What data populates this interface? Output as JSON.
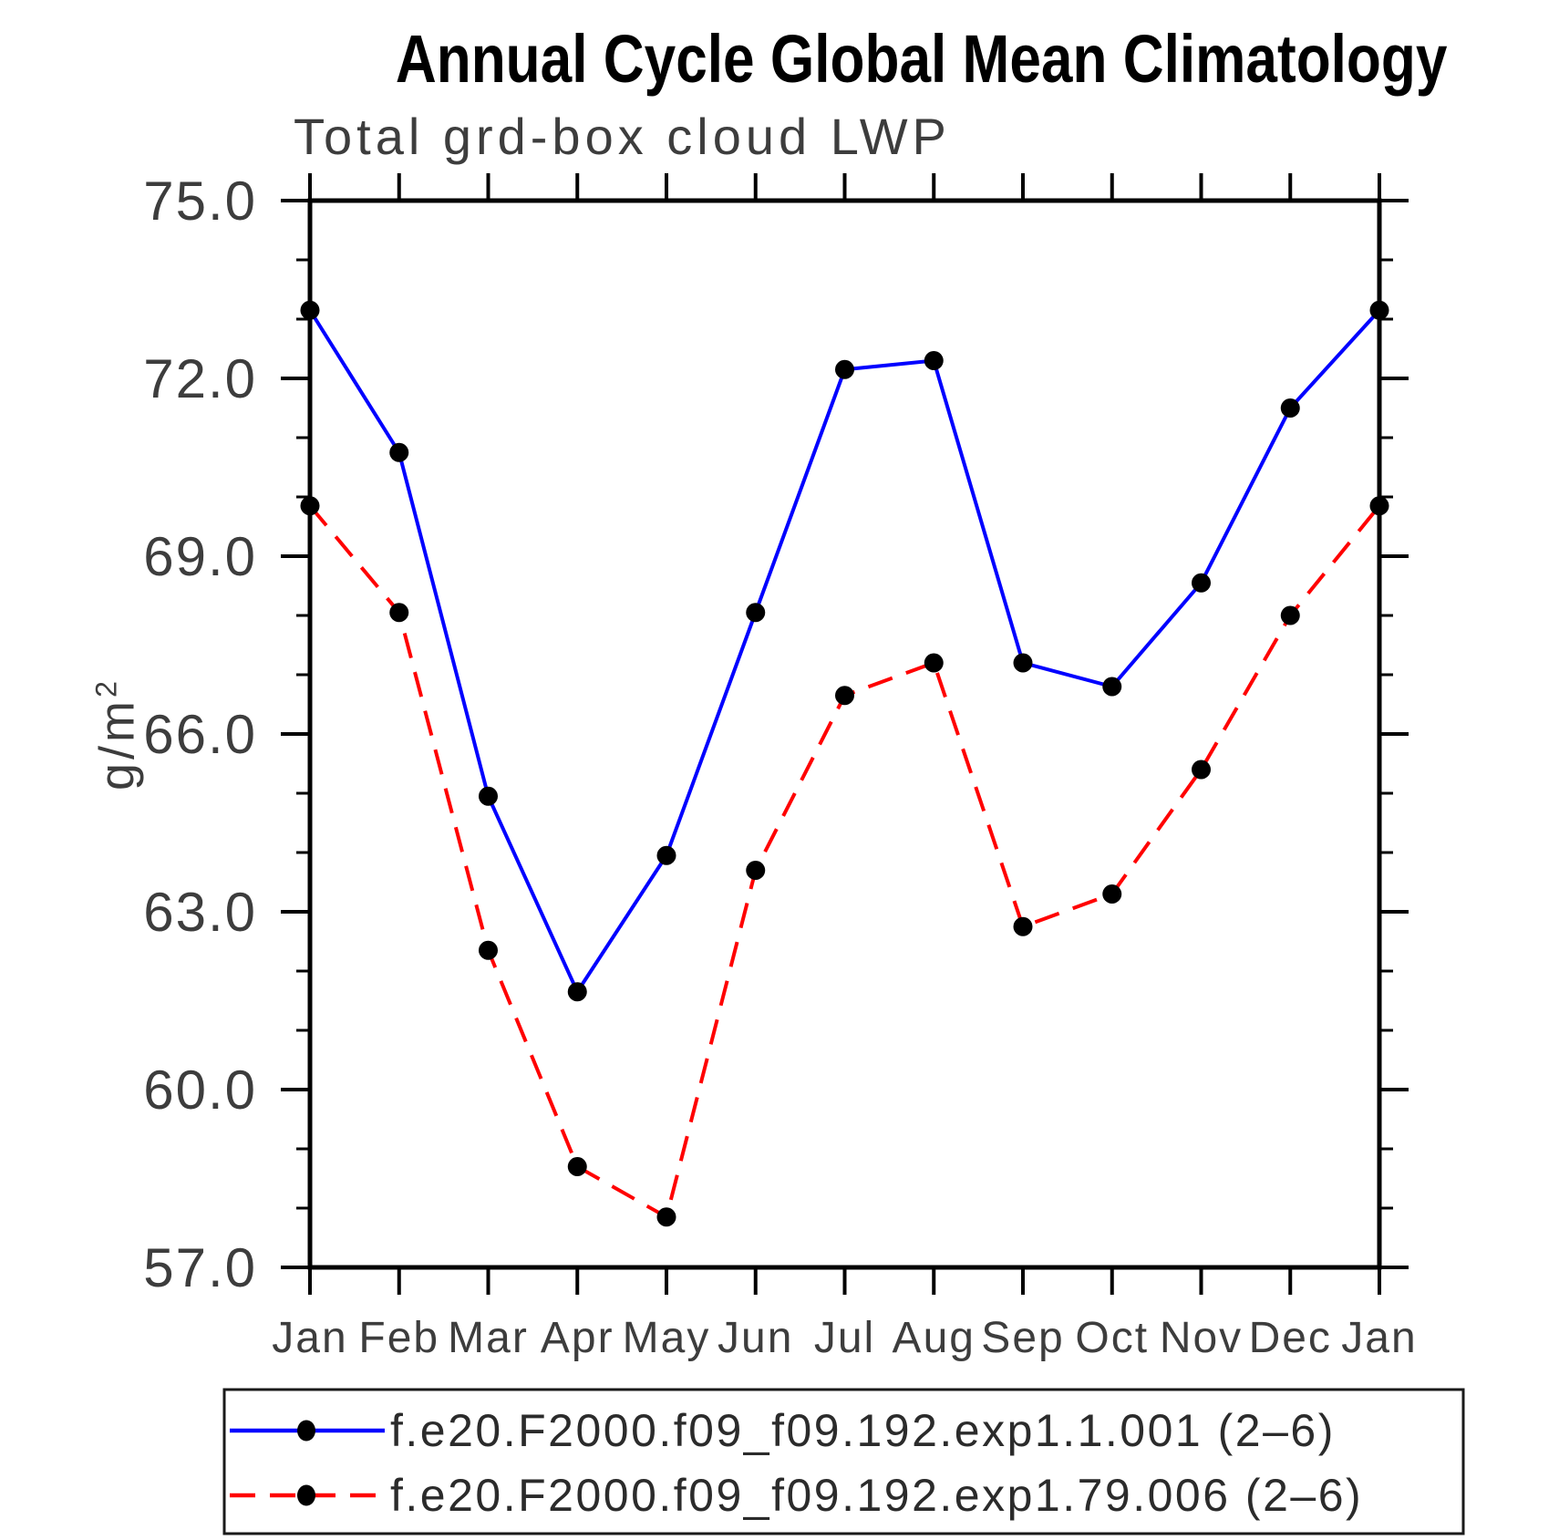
{
  "title": "Annual Cycle Global Mean Climatology",
  "subtitle": "Total grd-box cloud LWP",
  "ylabel": {
    "text": "g/m",
    "sup": "2"
  },
  "legend": {
    "entries": [
      {
        "label": "f.e20.F2000.f09_f09.192.exp1.1.001 (2–6)",
        "color": "#0000ff",
        "style": "solid"
      },
      {
        "label": "f.e20.F2000.f09_f09.192.exp1.79.006 (2–6)",
        "color": "#ff0000",
        "style": "dashed"
      }
    ]
  },
  "chart_data": {
    "type": "line",
    "title": "Annual Cycle Global Mean Climatology",
    "subtitle": "Total grd-box cloud LWP",
    "xlabel": "",
    "ylabel": "g/m^2",
    "categories": [
      "Jan",
      "Feb",
      "Mar",
      "Apr",
      "May",
      "Jun",
      "Jul",
      "Aug",
      "Sep",
      "Oct",
      "Nov",
      "Dec",
      "Jan"
    ],
    "ylim": [
      57.0,
      75.0
    ],
    "ytick_major_step": 3.0,
    "ytick_minor_step": 1.0,
    "ytick_labels": [
      "57.0",
      "60.0",
      "63.0",
      "66.0",
      "69.0",
      "72.0",
      "75.0"
    ],
    "grid": false,
    "legend_position": "bottom",
    "marker": {
      "shape": "circle",
      "color": "#000000"
    },
    "series": [
      {
        "name": "f.e20.F2000.f09_f09.192.exp1.1.001 (2–6)",
        "color": "#0000ff",
        "style": "solid",
        "values": [
          73.15,
          70.75,
          64.95,
          61.65,
          63.95,
          68.05,
          72.15,
          72.3,
          67.2,
          66.8,
          68.55,
          71.5,
          73.15
        ]
      },
      {
        "name": "f.e20.F2000.f09_f09.192.exp1.79.006 (2–6)",
        "color": "#ff0000",
        "style": "dashed",
        "values": [
          69.85,
          68.05,
          62.35,
          58.7,
          57.85,
          63.7,
          66.65,
          67.2,
          62.75,
          63.3,
          65.4,
          68.0,
          69.85
        ]
      }
    ]
  }
}
